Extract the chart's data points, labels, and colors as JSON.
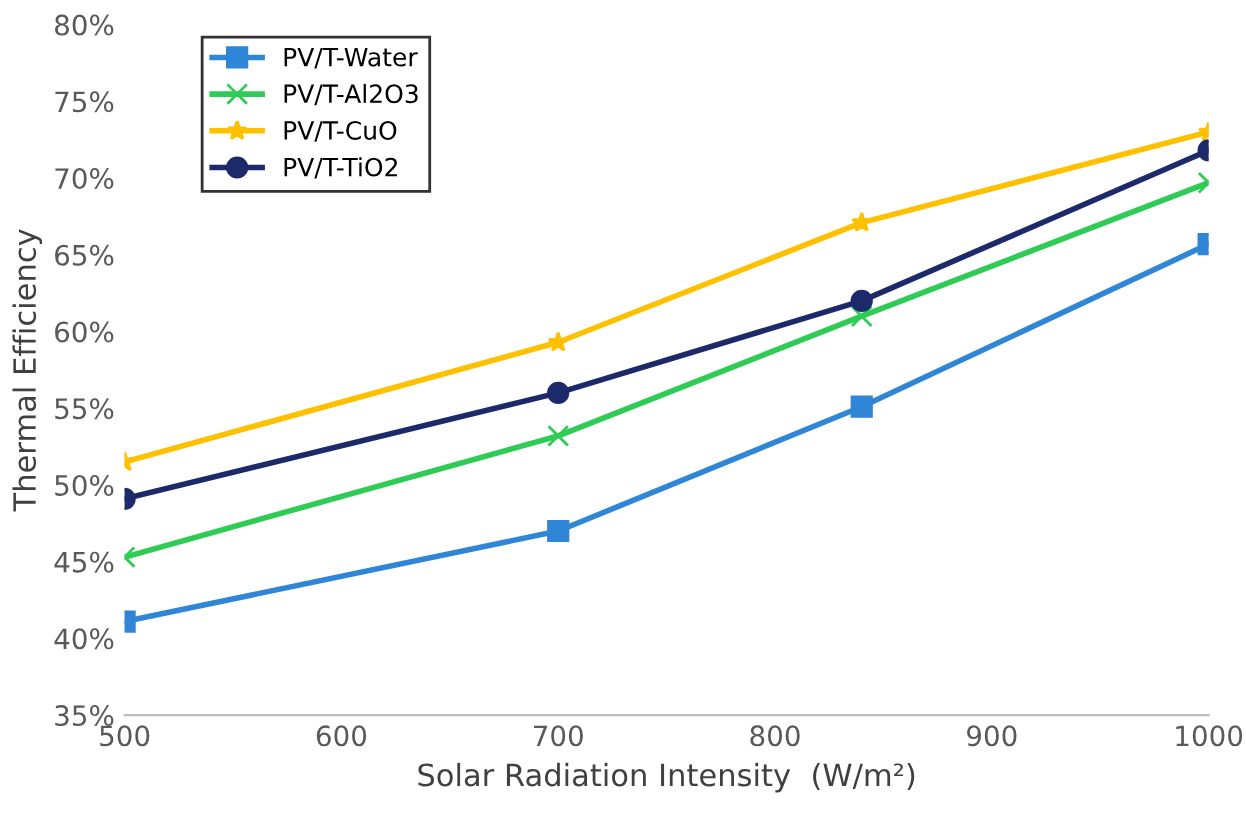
{
  "chart_data": {
    "type": "line",
    "xlabel": "Solar Radiation Intensity  (W/m²)",
    "ylabel": "Thermal Efficiency",
    "x": [
      500,
      700,
      840,
      1000
    ],
    "series": [
      {
        "name": "PV/T-Water",
        "color": "#2f86d6",
        "marker": "square",
        "values": [
          41.1,
          47.0,
          55.1,
          65.7
        ]
      },
      {
        "name": "PV/T-Al2O3",
        "color": "#2ecc55",
        "marker": "cross",
        "values": [
          45.3,
          53.2,
          61.0,
          69.7
        ]
      },
      {
        "name": "PV/T-CuO",
        "color": "#ffc000",
        "marker": "star",
        "values": [
          51.5,
          59.3,
          67.1,
          73.0
        ]
      },
      {
        "name": "PV/T-TiO2",
        "color": "#1c2a6b",
        "marker": "circle",
        "values": [
          49.1,
          56.0,
          62.0,
          71.8
        ]
      }
    ],
    "xlim": [
      500,
      1000
    ],
    "xticks": [
      500,
      600,
      700,
      800,
      900,
      1000
    ],
    "ylim": [
      35,
      80
    ],
    "yticks": [
      {
        "value": 35,
        "label": "35%"
      },
      {
        "value": 40,
        "label": "40%"
      },
      {
        "value": 45,
        "label": "45%"
      },
      {
        "value": 50,
        "label": "50%"
      },
      {
        "value": 55,
        "label": "55%"
      },
      {
        "value": 60,
        "label": "60%"
      },
      {
        "value": 65,
        "label": "65%"
      },
      {
        "value": 70,
        "label": "70%"
      },
      {
        "value": 75,
        "label": "75%"
      },
      {
        "value": 80,
        "label": "80%"
      }
    ],
    "legend": "top left",
    "grid": false,
    "line_style": "solid"
  }
}
